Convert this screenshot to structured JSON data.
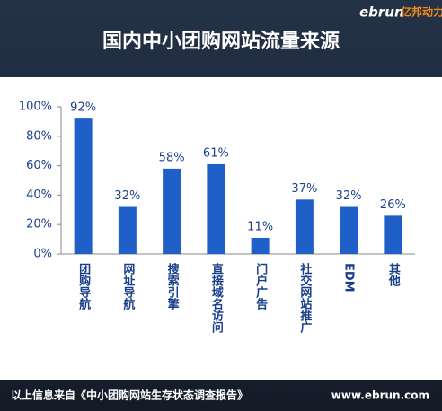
{
  "logo": {
    "brand": "ebrun",
    "name": "亿邦动力"
  },
  "chart_data": {
    "type": "bar",
    "title": "国内中小团购网站流量来源",
    "categories": [
      "团购导航",
      "网址导航",
      "搜索引擎",
      "直接域名访问",
      "门户广告",
      "社交网站推广",
      "EDM",
      "其他"
    ],
    "values": [
      92,
      32,
      58,
      61,
      11,
      37,
      32,
      26
    ],
    "value_labels": [
      "92%",
      "32%",
      "58%",
      "61%",
      "11%",
      "37%",
      "32%",
      "26%"
    ],
    "color": "#1f5fc8",
    "ylim": [
      0,
      100
    ],
    "yticks": [
      {
        "value": 0,
        "label": "0%"
      },
      {
        "value": 20,
        "label": "20%"
      },
      {
        "value": 40,
        "label": "40%"
      },
      {
        "value": 60,
        "label": "60%"
      },
      {
        "value": 80,
        "label": "80%"
      },
      {
        "value": 100,
        "label": "100%"
      }
    ]
  },
  "footer": {
    "source": "以上信息来自《中小团购网站生存状态调查报告》",
    "url": "www.ebrun.com"
  }
}
